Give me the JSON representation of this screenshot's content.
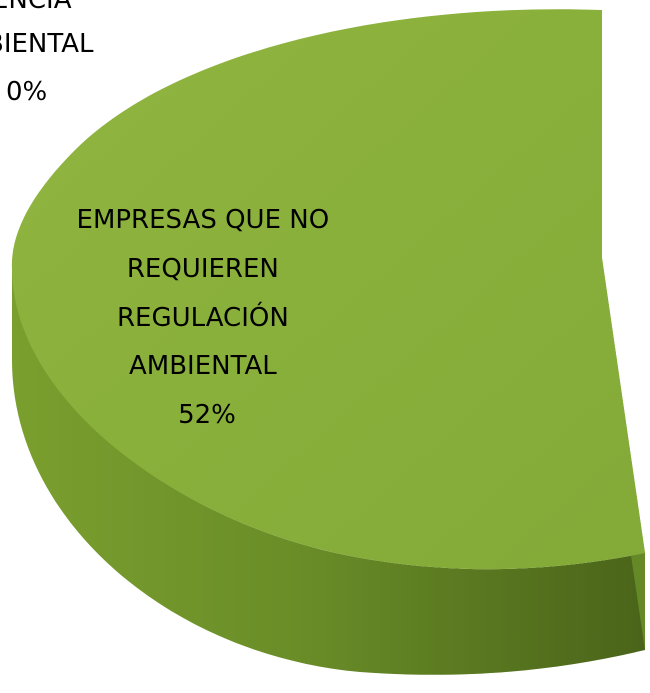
{
  "chart_data": {
    "type": "pie",
    "three_d": true,
    "legend": "none",
    "title": "",
    "slices": [
      {
        "label_lines": [
          "EMPRESAS QUE NO",
          "REQUIEREN",
          "REGULACIÓN",
          "AMBIENTAL"
        ],
        "value_label": "52%",
        "value": 52,
        "color": "#86ad3a",
        "side_color": "#5d7d24"
      },
      {
        "label_lines": [
          "…ENCIA",
          "…BIENTAL"
        ],
        "value_label": "0%",
        "value": 0
      }
    ]
  }
}
